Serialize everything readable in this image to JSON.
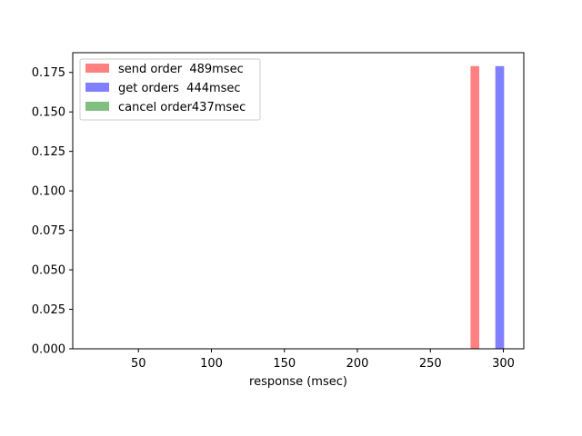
{
  "chart_data": {
    "type": "bar",
    "title": "",
    "xlabel": "response (msec)",
    "ylabel": "",
    "xlim": [
      5,
      314
    ],
    "ylim": [
      0,
      0.1875
    ],
    "xticks": [
      50,
      100,
      150,
      200,
      250,
      300
    ],
    "yticks": [
      0.0,
      0.025,
      0.05,
      0.075,
      0.1,
      0.125,
      0.15,
      0.175
    ],
    "ytick_labels": [
      "0.000",
      "0.025",
      "0.050",
      "0.075",
      "0.100",
      "0.125",
      "0.150",
      "0.175"
    ],
    "grid": false,
    "legend_position": "top-left",
    "series": [
      {
        "name": "send order  489msec",
        "color": "#ff8080",
        "x_start": 277.5,
        "x_end": 283.5,
        "value": 0.179
      },
      {
        "name": "get orders  444msec",
        "color": "#8080ff",
        "x_start": 294.5,
        "x_end": 300.5,
        "value": 0.179
      },
      {
        "name": "cancel order437msec",
        "color": "#80bf80",
        "x_start": null,
        "x_end": null,
        "value": null
      }
    ]
  }
}
